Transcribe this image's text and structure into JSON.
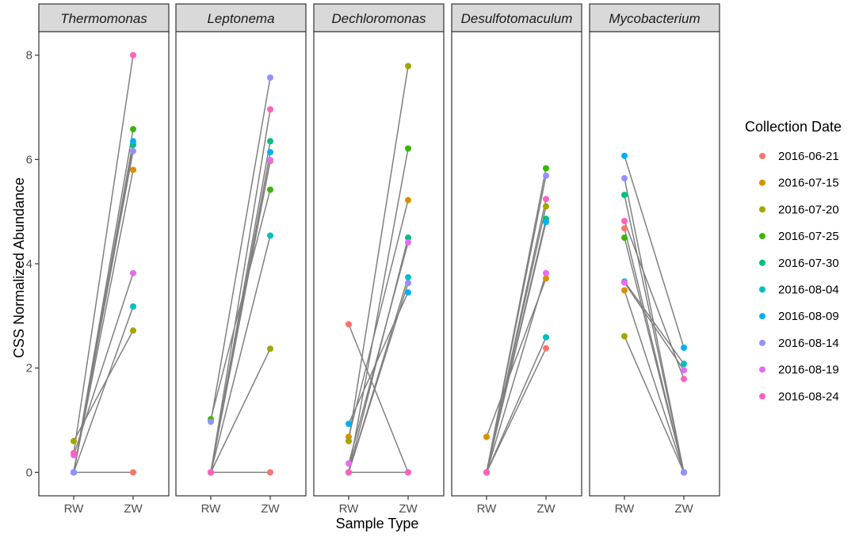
{
  "chart_data": {
    "type": "scatter",
    "subtype": "faceted paired dot plot",
    "xlabel": "Sample Type",
    "ylabel": "CSS Normalized Abundance",
    "x_categories": [
      "RW",
      "ZW"
    ],
    "ylim": [
      -0.45,
      8.45
    ],
    "yticks": [
      0,
      2,
      4,
      6,
      8
    ],
    "legend": {
      "title": "Collection Date",
      "position": "right",
      "entries": [
        {
          "label": "2016-06-21",
          "color": "#F8766D"
        },
        {
          "label": "2016-07-15",
          "color": "#D89000"
        },
        {
          "label": "2016-07-20",
          "color": "#A3A500"
        },
        {
          "label": "2016-07-25",
          "color": "#39B600"
        },
        {
          "label": "2016-07-30",
          "color": "#00BF7D"
        },
        {
          "label": "2016-08-04",
          "color": "#00BFC4"
        },
        {
          "label": "2016-08-09",
          "color": "#00B0F6"
        },
        {
          "label": "2016-08-14",
          "color": "#9590FF"
        },
        {
          "label": "2016-08-19",
          "color": "#E76BF3"
        },
        {
          "label": "2016-08-24",
          "color": "#FF62BC"
        }
      ]
    },
    "line_color": "#808080",
    "facets": [
      {
        "title": "Thermomonas",
        "rw": [
          0,
          0,
          0.6,
          0,
          0,
          0,
          0,
          0,
          0.33,
          0.37
        ],
        "zw": [
          0,
          5.8,
          2.72,
          6.58,
          6.28,
          3.18,
          6.35,
          6.16,
          3.82,
          8.0
        ]
      },
      {
        "title": "Leptonema",
        "rw": [
          0,
          0,
          0,
          1.02,
          0,
          0,
          0,
          0.97,
          0,
          0
        ],
        "zw": [
          0,
          5.97,
          2.37,
          5.42,
          6.35,
          4.54,
          6.14,
          7.57,
          5.99,
          6.96
        ]
      },
      {
        "title": "Dechloromonas",
        "rw": [
          2.84,
          0.68,
          0.6,
          0,
          0,
          0,
          0.93,
          0,
          0.17,
          0
        ],
        "zw": [
          0,
          5.22,
          7.79,
          6.21,
          4.5,
          3.74,
          3.45,
          3.63,
          4.41,
          0
        ]
      },
      {
        "title": "Desulfotomaculum",
        "rw": [
          0,
          0.68,
          0,
          0,
          0,
          0,
          0,
          0,
          0,
          0
        ],
        "zw": [
          2.38,
          3.72,
          5.1,
          5.83,
          4.86,
          2.59,
          4.8,
          5.69,
          3.82,
          5.24
        ]
      },
      {
        "title": "Mycobacterium",
        "rw": [
          4.68,
          3.49,
          2.61,
          4.5,
          5.32,
          3.66,
          6.07,
          5.64,
          3.64,
          4.82
        ],
        "zw": [
          0,
          0,
          0,
          0,
          0,
          2.08,
          2.39,
          0,
          1.96,
          1.79
        ]
      }
    ]
  }
}
